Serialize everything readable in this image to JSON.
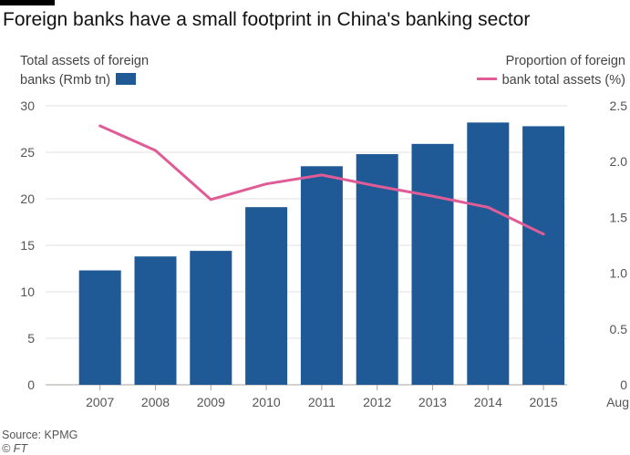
{
  "title": "Foreign banks have a small footprint in China's banking sector",
  "legend": {
    "bar_label_line1": "Total assets of foreign",
    "bar_label_line2": "banks (Rmb tn)",
    "line_label_line1": "Proportion of foreign",
    "line_label_line2": "bank total assets (%)"
  },
  "source": "Source: KPMG",
  "credit": "© FT",
  "colors": {
    "bar": "#1f5a96",
    "line": "#e05c96",
    "grid": "#e6e2dc",
    "text": "#555555"
  },
  "chart_data": {
    "type": "bar",
    "title": "Foreign banks have a small footprint in China's banking sector",
    "categories": [
      "2007",
      "2008",
      "2009",
      "2010",
      "2011",
      "2012",
      "2013",
      "2014",
      "2015"
    ],
    "x_extra_label": "Aug",
    "series": [
      {
        "name": "Total assets of foreign banks (Rmb tn)",
        "type": "bar",
        "axis": "left",
        "values": [
          12.3,
          13.8,
          14.4,
          19.1,
          23.5,
          24.8,
          25.9,
          28.2,
          27.8
        ]
      },
      {
        "name": "Proportion of foreign bank total assets (%)",
        "type": "line",
        "axis": "right",
        "values": [
          2.32,
          2.1,
          1.66,
          1.8,
          1.88,
          1.78,
          1.69,
          1.59,
          1.35
        ]
      }
    ],
    "left_axis": {
      "min": 0,
      "max": 30,
      "ticks": [
        "0",
        "5",
        "10",
        "15",
        "20",
        "25",
        "30"
      ]
    },
    "right_axis": {
      "min": 0,
      "max": 2.5,
      "ticks": [
        "0",
        "0.5",
        "1.0",
        "1.5",
        "2.0",
        "2.5"
      ]
    },
    "grid": true
  }
}
